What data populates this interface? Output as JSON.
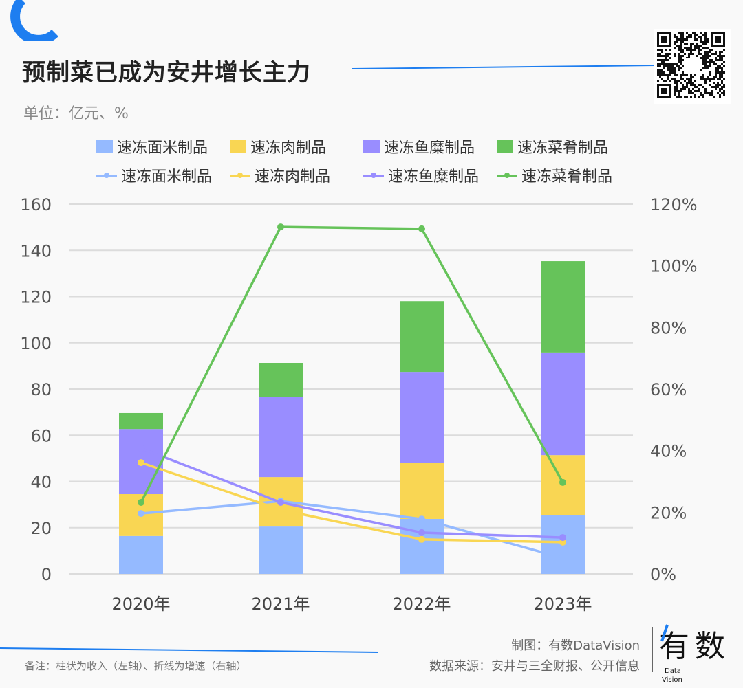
{
  "title": "预制菜已成为安井增长主力",
  "unit": "单位：亿元、%",
  "note": "备注：柱状为收入（左轴）、折线为增速（右轴）",
  "maker": "制图：有数DataVision",
  "source": "数据来源：安井与三全财报、公开信息",
  "logo_text": "有数 Data Vision",
  "chart_data": {
    "type": "bar",
    "stacked": true,
    "categories": [
      "2020年",
      "2021年",
      "2022年",
      "2023年"
    ],
    "left_ylim": [
      0,
      160
    ],
    "left_ticks": [
      "0",
      "20",
      "40",
      "60",
      "80",
      "100",
      "120",
      "140",
      "160"
    ],
    "right_ylim": [
      0,
      120
    ],
    "right_ticks": [
      "0%",
      "20%",
      "40%",
      "60%",
      "80%",
      "100%",
      "120%"
    ],
    "grid": true,
    "legend_placement": "top",
    "bar_series": [
      {
        "name": "速冻面米制品",
        "color": "#95baff",
        "values": [
          16.4,
          20.5,
          23.8,
          25.3
        ]
      },
      {
        "name": "速冻肉制品",
        "color": "#f9d653",
        "values": [
          18.1,
          21.4,
          24.1,
          26.1
        ]
      },
      {
        "name": "速冻鱼糜制品",
        "color": "#998dff",
        "values": [
          28.2,
          34.8,
          39.5,
          44.4
        ]
      },
      {
        "name": "速冻菜肴制品",
        "color": "#66c35a",
        "values": [
          6.9,
          14.6,
          30.6,
          39.5
        ]
      }
    ],
    "line_series": [
      {
        "name": "速冻面米制品",
        "color": "#95baff",
        "values": [
          19.6,
          23.6,
          17.8,
          5.2
        ]
      },
      {
        "name": "速冻肉制品",
        "color": "#f9d653",
        "values": [
          36.1,
          20.8,
          11.2,
          10.3
        ]
      },
      {
        "name": "速冻鱼糜制品",
        "color": "#998dff",
        "values": [
          40.8,
          23.2,
          13.4,
          11.8
        ]
      },
      {
        "name": "速冻菜肴制品",
        "color": "#66c35a",
        "values": [
          23.2,
          112.6,
          112.0,
          29.7
        ]
      }
    ]
  }
}
